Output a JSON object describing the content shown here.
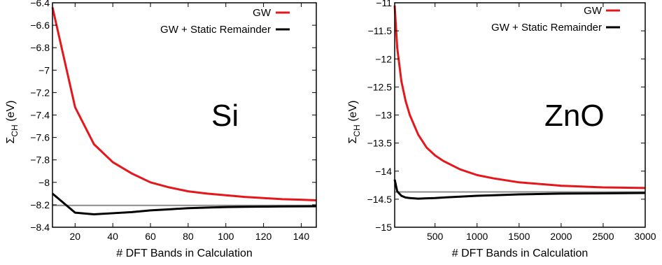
{
  "chart_data": [
    {
      "type": "line",
      "annotation": "Si",
      "xlabel": "# DFT Bands in Calculation",
      "ylabel": "Σ_CH (eV)",
      "ylabel_main": "Σ",
      "ylabel_sub": "CH",
      "ylabel_unit": " (eV)",
      "xlim": [
        8,
        148
      ],
      "ylim": [
        -8.4,
        -6.4
      ],
      "x_ticks": [
        20,
        40,
        60,
        80,
        100,
        120,
        140
      ],
      "x_tick_labels": [
        "20",
        "40",
        "60",
        "80",
        "100",
        "120",
        "140"
      ],
      "y_ticks": [
        -8.4,
        -8.2,
        -8.0,
        -7.8,
        -7.6,
        -7.4,
        -7.2,
        -7.0,
        -6.8,
        -6.6,
        -6.4
      ],
      "y_tick_labels": [
        "−8.4",
        "−8.2",
        "−8",
        "−7.8",
        "−7.6",
        "−7.4",
        "−7.2",
        "−7",
        "−6.8",
        "−6.6",
        "−6.4"
      ],
      "grid": false,
      "legend_position": "top-right",
      "reference_line": {
        "y": -8.205,
        "color": "#8c8c8c"
      },
      "series": [
        {
          "name": "GW",
          "color": "#e4181c",
          "x": [
            8,
            20,
            30,
            40,
            50,
            60,
            70,
            80,
            90,
            100,
            110,
            120,
            130,
            140,
            148
          ],
          "y": [
            -6.44,
            -7.33,
            -7.66,
            -7.82,
            -7.92,
            -8.0,
            -8.045,
            -8.08,
            -8.1,
            -8.115,
            -8.13,
            -8.14,
            -8.15,
            -8.155,
            -8.16
          ]
        },
        {
          "name": "GW + Static Remainder",
          "color": "#000000",
          "x": [
            8,
            20,
            30,
            40,
            50,
            60,
            70,
            80,
            90,
            100,
            110,
            120,
            130,
            140,
            148
          ],
          "y": [
            -8.1,
            -8.27,
            -8.285,
            -8.275,
            -8.265,
            -8.25,
            -8.24,
            -8.23,
            -8.225,
            -8.22,
            -8.218,
            -8.216,
            -8.215,
            -8.214,
            -8.213
          ]
        }
      ]
    },
    {
      "type": "line",
      "annotation": "ZnO",
      "xlabel": "# DFT Bands in Calculation",
      "ylabel": "Σ_CH (eV)",
      "ylabel_main": "Σ",
      "ylabel_sub": "CH",
      "ylabel_unit": " (eV)",
      "xlim": [
        20,
        3000
      ],
      "ylim": [
        -15,
        -11
      ],
      "x_ticks": [
        500,
        1000,
        1500,
        2000,
        2500,
        3000
      ],
      "x_tick_labels": [
        "500",
        "1000",
        "1500",
        "2000",
        "2500",
        "3000"
      ],
      "y_ticks": [
        -15,
        -14.5,
        -14,
        -13.5,
        -13,
        -12.5,
        -12,
        -11.5,
        -11
      ],
      "y_tick_labels": [
        "−15",
        "−14.5",
        "−14",
        "−13.5",
        "−13",
        "−12.5",
        "−12",
        "−11.5",
        "−11"
      ],
      "grid": false,
      "legend_position": "top-right",
      "reference_line": {
        "y": -14.37,
        "color": "#8c8c8c"
      },
      "series": [
        {
          "name": "GW",
          "color": "#e4181c",
          "x": [
            20,
            50,
            100,
            150,
            200,
            300,
            400,
            500,
            600,
            800,
            1000,
            1200,
            1500,
            2000,
            2500,
            3000
          ],
          "y": [
            -11.05,
            -11.8,
            -12.4,
            -12.75,
            -13.0,
            -13.35,
            -13.58,
            -13.72,
            -13.82,
            -13.97,
            -14.07,
            -14.13,
            -14.2,
            -14.26,
            -14.29,
            -14.3
          ]
        },
        {
          "name": "GW + Static Remainder",
          "color": "#000000",
          "x": [
            20,
            50,
            100,
            150,
            200,
            300,
            400,
            500,
            600,
            800,
            1000,
            1200,
            1500,
            2000,
            2500,
            3000
          ],
          "y": [
            -14.15,
            -14.36,
            -14.44,
            -14.47,
            -14.48,
            -14.49,
            -14.485,
            -14.48,
            -14.47,
            -14.455,
            -14.44,
            -14.43,
            -14.415,
            -14.4,
            -14.395,
            -14.39
          ]
        }
      ]
    }
  ]
}
